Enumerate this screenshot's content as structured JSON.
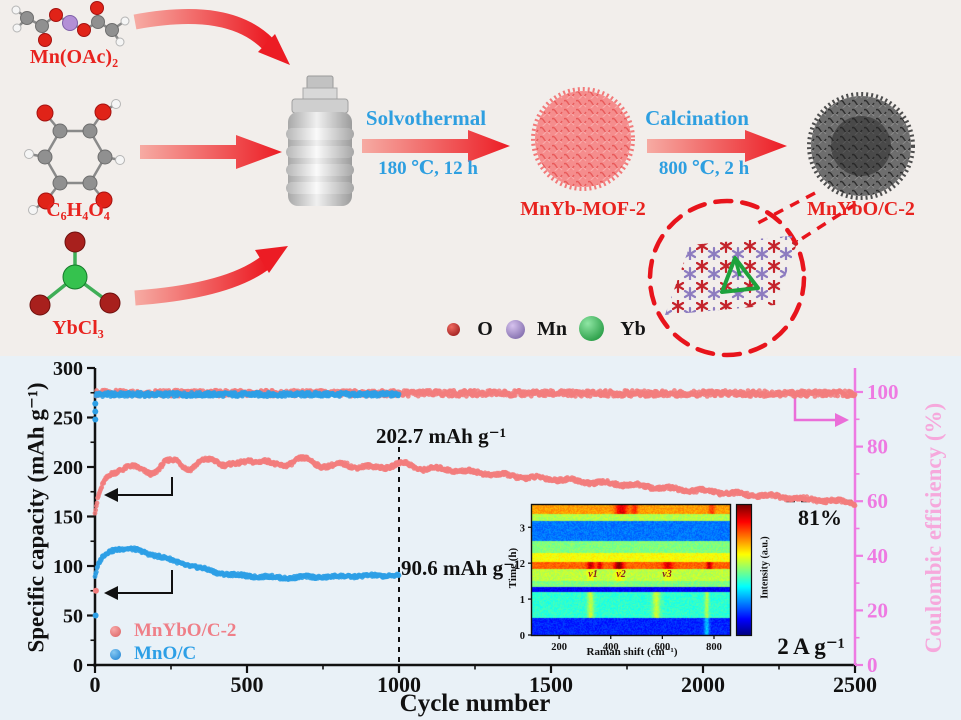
{
  "scheme": {
    "reactant1": "Mn(OAc)₂",
    "reactant2": "C₆H₄O₄",
    "reactant3": "YbCl₃",
    "step1_name": "Solvothermal",
    "step1_cond": "180 ℃, 12 h",
    "intermediate": "MnYb-MOF-2",
    "step2_name": "Calcination",
    "step2_cond": "800 ℃, 2 h",
    "product": "MnYbO/C-2",
    "atom_legend": {
      "O": "O",
      "Mn": "Mn",
      "Yb": "Yb"
    }
  },
  "chart_data": {
    "type": "scatter",
    "xlabel": "Cycle number",
    "ylabel_left": "Specific capacity (mAh g⁻¹)",
    "ylabel_right": "Coulombic efficiency (%)",
    "xlim": [
      0,
      2500
    ],
    "x_ticks": [
      0,
      500,
      1000,
      1500,
      2000,
      2500
    ],
    "x_minor_step": 250,
    "ylim_left": [
      0,
      300
    ],
    "y_ticks_left": [
      0,
      50,
      100,
      150,
      200,
      250,
      300
    ],
    "ylim_right": [
      0,
      100
    ],
    "y_ticks_right": [
      0,
      20,
      40,
      60,
      80,
      100
    ],
    "rate_label": "2 A g⁻¹",
    "annotations": {
      "pink_at_1000": "202.7 mAh g⁻¹",
      "blue_at_1000": "90.6 mAh g⁻¹",
      "retention": "81%"
    },
    "legend": [
      {
        "label": "MnYbO/C-2",
        "color": "#ef7f88"
      },
      {
        "label": "MnO/C",
        "color": "#2d9fe6"
      }
    ],
    "series": [
      {
        "name": "MnYbO/C-2 coulombic efficiency",
        "axis": "right",
        "color": "#f27d7d",
        "wobble": 0,
        "jitter": 1.1,
        "points": [
          [
            3,
            99.6
          ],
          [
            2500,
            99.4
          ]
        ],
        "extra": []
      },
      {
        "name": "MnO/C coulombic efficiency",
        "axis": "right",
        "color": "#2d9fe6",
        "wobble": 0,
        "jitter": 0.8,
        "points": [
          [
            3,
            99.1
          ],
          [
            1000,
            99.1
          ]
        ],
        "extra": []
      },
      {
        "name": "MnYbO/C-2 capacity",
        "axis": "left",
        "color": "#f27d7d",
        "wobble": 2.5,
        "jitter": 1.8,
        "points": [
          [
            0,
            155
          ],
          [
            12,
            170
          ],
          [
            28,
            182
          ],
          [
            50,
            192
          ],
          [
            80,
            199
          ],
          [
            110,
            201
          ],
          [
            150,
            196
          ],
          [
            190,
            195
          ],
          [
            230,
            204
          ],
          [
            270,
            206
          ],
          [
            310,
            199
          ],
          [
            350,
            204
          ],
          [
            390,
            208
          ],
          [
            430,
            203
          ],
          [
            470,
            201
          ],
          [
            510,
            208
          ],
          [
            550,
            206
          ],
          [
            590,
            201
          ],
          [
            630,
            204
          ],
          [
            670,
            207
          ],
          [
            710,
            206
          ],
          [
            750,
            202
          ],
          [
            790,
            200
          ],
          [
            830,
            203
          ],
          [
            870,
            201
          ],
          [
            910,
            198
          ],
          [
            950,
            201
          ],
          [
            1000,
            203
          ],
          [
            1060,
            200
          ],
          [
            1120,
            198
          ],
          [
            1180,
            197
          ],
          [
            1240,
            195
          ],
          [
            1300,
            193
          ],
          [
            1370,
            191
          ],
          [
            1440,
            189
          ],
          [
            1510,
            188
          ],
          [
            1580,
            186
          ],
          [
            1650,
            184
          ],
          [
            1720,
            183
          ],
          [
            1790,
            181
          ],
          [
            1860,
            179
          ],
          [
            1930,
            177
          ],
          [
            2000,
            176
          ],
          [
            2070,
            174
          ],
          [
            2140,
            172
          ],
          [
            2210,
            171
          ],
          [
            2280,
            169
          ],
          [
            2350,
            167
          ],
          [
            2420,
            166
          ],
          [
            2500,
            164
          ]
        ],
        "extra": [
          [
            3,
            75
          ]
        ]
      },
      {
        "name": "MnO/C capacity",
        "axis": "left",
        "color": "#2d9fe6",
        "wobble": 0.7,
        "jitter": 1.5,
        "points": [
          [
            0,
            90
          ],
          [
            12,
            102
          ],
          [
            25,
            109
          ],
          [
            45,
            114
          ],
          [
            70,
            117
          ],
          [
            100,
            118
          ],
          [
            135,
            116
          ],
          [
            170,
            113
          ],
          [
            210,
            110
          ],
          [
            250,
            106
          ],
          [
            290,
            102
          ],
          [
            330,
            99
          ],
          [
            370,
            96
          ],
          [
            410,
            93
          ],
          [
            450,
            91
          ],
          [
            500,
            90
          ],
          [
            560,
            89
          ],
          [
            630,
            88
          ],
          [
            700,
            89
          ],
          [
            780,
            89
          ],
          [
            860,
            90
          ],
          [
            930,
            90
          ],
          [
            1000,
            91
          ]
        ],
        "extra": [
          [
            2,
            50
          ],
          [
            1,
            248
          ],
          [
            1,
            256
          ],
          [
            1,
            264
          ]
        ]
      }
    ],
    "inset": {
      "type": "heatmap",
      "xlabel": "Raman shift (cm⁻¹)",
      "ylabel": "Time (h)",
      "colorbar_label": "Intensity (a.u.)",
      "x_range": [
        95,
        862
      ],
      "x_ticks": [
        200,
        400,
        600,
        800
      ],
      "t_max": 3.62,
      "t_ticks": [
        0,
        1,
        2,
        3
      ],
      "peak_labels": {
        "n1": "ν1",
        "n2": "ν2",
        "n3": "ν3"
      },
      "peak_positions": [
        320,
        430,
        620
      ],
      "bands": [
        {
          "t": [
            0,
            0.5
          ],
          "v": 0.16,
          "bumps": [
            [
              770,
              0.16,
              7
            ]
          ]
        },
        {
          "t": [
            0.5,
            1.22
          ],
          "v": 0.42,
          "bumps": [
            [
              320,
              0.15,
              9
            ],
            [
              575,
              0.15,
              11
            ],
            [
              770,
              0.13,
              6
            ]
          ]
        },
        {
          "t": [
            1.22,
            1.34
          ],
          "v": 0.12,
          "bumps": []
        },
        {
          "t": [
            1.34,
            1.52
          ],
          "v": 0.5,
          "bumps": []
        },
        {
          "t": [
            1.52,
            1.84
          ],
          "v": 0.56,
          "bumps": [
            [
              320,
              0.06,
              10
            ],
            [
              430,
              0.07,
              12
            ],
            [
              620,
              0.05,
              12
            ]
          ]
        },
        {
          "t": [
            1.84,
            2.06
          ],
          "v": 0.78,
          "bumps": [
            [
              320,
              0.16,
              9
            ],
            [
              355,
              0.13,
              7
            ],
            [
              430,
              0.22,
              12
            ],
            [
              620,
              0.13,
              13
            ],
            [
              780,
              0.16,
              7
            ]
          ]
        },
        {
          "t": [
            2.06,
            2.3
          ],
          "v": 0.62,
          "bumps": []
        },
        {
          "t": [
            2.3,
            2.64
          ],
          "v": 0.5,
          "bumps": []
        },
        {
          "t": [
            2.64,
            3.2
          ],
          "v": 0.24,
          "bumps": []
        },
        {
          "t": [
            3.2,
            3.38
          ],
          "v": 0.55,
          "bumps": []
        },
        {
          "t": [
            3.38,
            3.62
          ],
          "v": 0.72,
          "bumps": [
            [
              440,
              0.18,
              18
            ],
            [
              490,
              0.12,
              8
            ],
            [
              790,
              0.1,
              8
            ]
          ]
        }
      ]
    }
  },
  "colors": {
    "accent_red": "#e8231f",
    "process_blue": "#2e9fe0",
    "series_pink": "#f27d7d",
    "series_blue": "#2d9fe6",
    "ce_axis": "#ee7ae2",
    "ce_title": "#f6a8dc",
    "axis_black": "#111111",
    "bg_top": "#f2eeeb",
    "bg_bottom": "#e9f1f7"
  }
}
